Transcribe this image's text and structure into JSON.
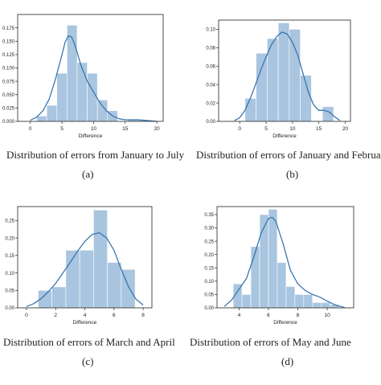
{
  "colors": {
    "bar_fill": "#a9c5df",
    "curve": "#3a76af",
    "axis": "#222222"
  },
  "chart_data": [
    {
      "type": "bar",
      "panel_label": "(a)",
      "caption": "Distribution of errors from January to July",
      "xlabel": "Difference",
      "ylabel": "",
      "xlim": [
        -2,
        21
      ],
      "ylim": [
        0,
        0.2
      ],
      "xticks": [
        0,
        5,
        10,
        15,
        20
      ],
      "xtick_labels": [
        "0",
        "5",
        "10",
        "15",
        "20"
      ],
      "yticks": [
        0,
        0.025,
        0.05,
        0.075,
        0.1,
        0.125,
        0.15,
        0.175
      ],
      "ytick_labels": [
        "0.000",
        "0.025",
        "0.050",
        "0.075",
        "0.100",
        "0.125",
        "0.150",
        "0.175"
      ],
      "bins": [
        {
          "x0": 1,
          "x1": 2.6,
          "value": 0.01
        },
        {
          "x0": 2.6,
          "x1": 4.2,
          "value": 0.03
        },
        {
          "x0": 4.2,
          "x1": 5.8,
          "value": 0.09
        },
        {
          "x0": 5.8,
          "x1": 7.4,
          "value": 0.18
        },
        {
          "x0": 7.4,
          "x1": 9.0,
          "value": 0.11
        },
        {
          "x0": 9.0,
          "x1": 10.6,
          "value": 0.09
        },
        {
          "x0": 10.6,
          "x1": 12.2,
          "value": 0.04
        },
        {
          "x0": 12.2,
          "x1": 13.8,
          "value": 0.02
        },
        {
          "x0": 13.8,
          "x1": 15.4,
          "value": 0.0
        },
        {
          "x0": 15.4,
          "x1": 17.0,
          "value": 0.003
        },
        {
          "x0": 17.0,
          "x1": 18.6,
          "value": 0.003
        }
      ],
      "kde": {
        "x": [
          0,
          1,
          2,
          3,
          4,
          5,
          5.5,
          6,
          6.5,
          7,
          7.5,
          8,
          9,
          10,
          11,
          12,
          13,
          14,
          15,
          16,
          17,
          18,
          19,
          20
        ],
        "y": [
          0.002,
          0.008,
          0.02,
          0.042,
          0.08,
          0.125,
          0.148,
          0.16,
          0.158,
          0.145,
          0.125,
          0.105,
          0.075,
          0.055,
          0.035,
          0.02,
          0.01,
          0.005,
          0.003,
          0.003,
          0.003,
          0.002,
          0.001,
          0.0
        ]
      }
    },
    {
      "type": "bar",
      "panel_label": "(b)",
      "caption": "Distribution of errors of January and February",
      "xlabel": "Difference",
      "ylabel": "",
      "xlim": [
        -4,
        21
      ],
      "ylim": [
        0,
        0.11
      ],
      "xticks": [
        0,
        5,
        10,
        15,
        20
      ],
      "xtick_labels": [
        "0",
        "5",
        "10",
        "15",
        "20"
      ],
      "yticks": [
        0,
        0.02,
        0.04,
        0.06,
        0.08,
        0.1
      ],
      "ytick_labels": [
        "0.00",
        "0.02",
        "0.04",
        "0.06",
        "0.08",
        "0.10"
      ],
      "bins": [
        {
          "x0": 1,
          "x1": 3.1,
          "value": 0.025
        },
        {
          "x0": 3.1,
          "x1": 5.2,
          "value": 0.074
        },
        {
          "x0": 5.2,
          "x1": 7.3,
          "value": 0.09
        },
        {
          "x0": 7.3,
          "x1": 9.4,
          "value": 0.107
        },
        {
          "x0": 9.4,
          "x1": 11.5,
          "value": 0.1
        },
        {
          "x0": 11.5,
          "x1": 13.6,
          "value": 0.05
        },
        {
          "x0": 13.6,
          "x1": 15.7,
          "value": 0.0
        },
        {
          "x0": 15.7,
          "x1": 17.8,
          "value": 0.016
        }
      ],
      "kde": {
        "x": [
          -1,
          0,
          1,
          2,
          3,
          4,
          5,
          6,
          7,
          8,
          9,
          10,
          11,
          12,
          13,
          14,
          15,
          16,
          17,
          18,
          19
        ],
        "y": [
          0.001,
          0.004,
          0.012,
          0.025,
          0.04,
          0.056,
          0.07,
          0.083,
          0.092,
          0.097,
          0.095,
          0.086,
          0.072,
          0.052,
          0.032,
          0.018,
          0.012,
          0.012,
          0.01,
          0.005,
          0.001
        ]
      }
    },
    {
      "type": "bar",
      "panel_label": "(c)",
      "caption": "Distribution of errors of March and April",
      "xlabel": "Difference",
      "ylabel": "",
      "xlim": [
        -0.6,
        8.6
      ],
      "ylim": [
        0,
        0.29
      ],
      "xticks": [
        0,
        2,
        4,
        6,
        8
      ],
      "xtick_labels": [
        "0",
        "2",
        "4",
        "6",
        "8"
      ],
      "yticks": [
        0,
        0.05,
        0.1,
        0.15,
        0.2,
        0.25
      ],
      "ytick_labels": [
        "0.00",
        "0.05",
        "0.10",
        "0.15",
        "0.20",
        "0.25"
      ],
      "bins": [
        {
          "x0": 0.8,
          "x1": 1.75,
          "value": 0.05
        },
        {
          "x0": 1.75,
          "x1": 2.7,
          "value": 0.06
        },
        {
          "x0": 2.7,
          "x1": 3.65,
          "value": 0.165
        },
        {
          "x0": 3.65,
          "x1": 4.6,
          "value": 0.165
        },
        {
          "x0": 4.6,
          "x1": 5.55,
          "value": 0.28
        },
        {
          "x0": 5.55,
          "x1": 6.5,
          "value": 0.13
        },
        {
          "x0": 6.5,
          "x1": 7.45,
          "value": 0.11
        }
      ],
      "kde": {
        "x": [
          0,
          0.5,
          1,
          1.5,
          2,
          2.5,
          3,
          3.5,
          4,
          4.5,
          5,
          5.5,
          6,
          6.5,
          7,
          7.5,
          8
        ],
        "y": [
          0.004,
          0.012,
          0.026,
          0.046,
          0.07,
          0.1,
          0.13,
          0.162,
          0.19,
          0.21,
          0.215,
          0.2,
          0.165,
          0.11,
          0.06,
          0.025,
          0.008
        ]
      }
    },
    {
      "type": "bar",
      "panel_label": "(d)",
      "caption": "Distribution of errors of May and June",
      "xlabel": "Difference",
      "ylabel": "",
      "xlim": [
        2.5,
        11.8
      ],
      "ylim": [
        0,
        0.38
      ],
      "xticks": [
        4,
        6,
        8,
        10
      ],
      "xtick_labels": [
        "4",
        "6",
        "8",
        "10"
      ],
      "yticks": [
        0,
        0.05,
        0.1,
        0.15,
        0.2,
        0.25,
        0.3,
        0.35
      ],
      "ytick_labels": [
        "0.00",
        "0.05",
        "0.10",
        "0.15",
        "0.20",
        "0.25",
        "0.30",
        "0.35"
      ],
      "bins": [
        {
          "x0": 3.6,
          "x1": 4.2,
          "value": 0.09
        },
        {
          "x0": 4.2,
          "x1": 4.8,
          "value": 0.05
        },
        {
          "x0": 4.8,
          "x1": 5.4,
          "value": 0.23
        },
        {
          "x0": 5.4,
          "x1": 6.0,
          "value": 0.35
        },
        {
          "x0": 6.0,
          "x1": 6.6,
          "value": 0.37
        },
        {
          "x0": 6.6,
          "x1": 7.2,
          "value": 0.17
        },
        {
          "x0": 7.2,
          "x1": 7.8,
          "value": 0.08
        },
        {
          "x0": 7.8,
          "x1": 8.4,
          "value": 0.05
        },
        {
          "x0": 8.4,
          "x1": 9.0,
          "value": 0.05
        },
        {
          "x0": 9.0,
          "x1": 9.6,
          "value": 0.02
        },
        {
          "x0": 9.6,
          "x1": 10.2,
          "value": 0.02
        },
        {
          "x0": 10.2,
          "x1": 10.8,
          "value": 0.012
        }
      ],
      "kde": {
        "x": [
          3.0,
          3.5,
          4.0,
          4.5,
          5.0,
          5.5,
          6.0,
          6.25,
          6.5,
          7.0,
          7.5,
          8.0,
          8.5,
          9.0,
          9.5,
          10.0,
          10.5,
          11.0,
          11.2
        ],
        "y": [
          0.005,
          0.03,
          0.07,
          0.11,
          0.19,
          0.28,
          0.335,
          0.34,
          0.325,
          0.24,
          0.14,
          0.09,
          0.065,
          0.05,
          0.04,
          0.025,
          0.012,
          0.004,
          0.001
        ]
      }
    }
  ]
}
